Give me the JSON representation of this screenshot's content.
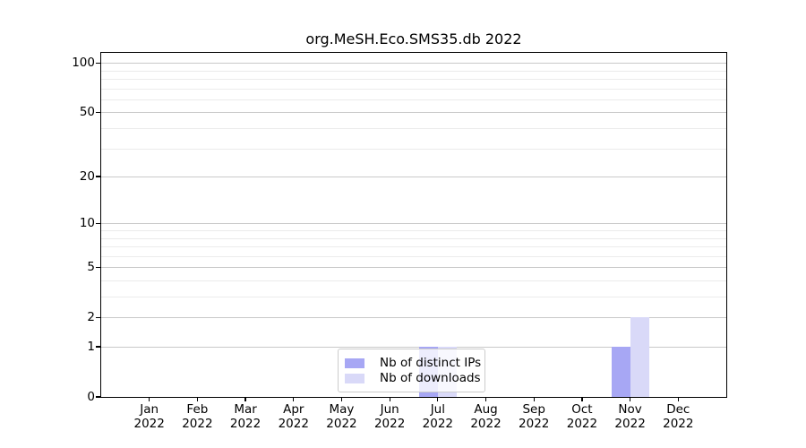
{
  "chart_data": {
    "type": "bar",
    "title": "org.MeSH.Eco.SMS35.db 2022",
    "categories": [
      {
        "month": "Jan",
        "year": "2022"
      },
      {
        "month": "Feb",
        "year": "2022"
      },
      {
        "month": "Mar",
        "year": "2022"
      },
      {
        "month": "Apr",
        "year": "2022"
      },
      {
        "month": "May",
        "year": "2022"
      },
      {
        "month": "Jun",
        "year": "2022"
      },
      {
        "month": "Jul",
        "year": "2022"
      },
      {
        "month": "Aug",
        "year": "2022"
      },
      {
        "month": "Sep",
        "year": "2022"
      },
      {
        "month": "Oct",
        "year": "2022"
      },
      {
        "month": "Nov",
        "year": "2022"
      },
      {
        "month": "Dec",
        "year": "2022"
      }
    ],
    "series": [
      {
        "name": "Nb of distinct IPs",
        "color": "#a7a7f4",
        "values": [
          0,
          0,
          0,
          0,
          0,
          0,
          1,
          0,
          0,
          0,
          1,
          0
        ]
      },
      {
        "name": "Nb of downloads",
        "color": "#d9d9f8",
        "values": [
          0,
          0,
          0,
          0,
          0,
          0,
          1,
          0,
          0,
          0,
          2,
          0
        ]
      }
    ],
    "y_axis": {
      "scale": "log1p",
      "ticks": [
        0,
        1,
        2,
        5,
        10,
        20,
        50,
        100
      ],
      "minor_ticks": [
        3,
        4,
        6,
        7,
        8,
        9,
        30,
        40,
        60,
        70,
        80,
        90
      ],
      "ylim": [
        0,
        115
      ]
    },
    "xlabel": "",
    "ylabel": "",
    "grid": true,
    "legend_position": "lower center"
  }
}
